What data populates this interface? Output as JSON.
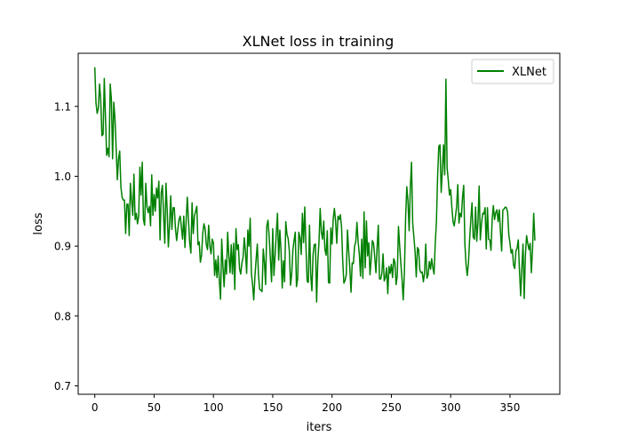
{
  "chart_data": {
    "type": "line",
    "title": "XLNet loss in training",
    "xlabel": "iters",
    "ylabel": "loss",
    "xlim": [
      -14,
      392
    ],
    "ylim": [
      0.688,
      1.176
    ],
    "xticks": [
      0,
      50,
      100,
      150,
      200,
      250,
      300,
      350
    ],
    "yticks": [
      0.7,
      0.8,
      0.9,
      1.0,
      1.1
    ],
    "ytick_labels": [
      "0.7",
      "0.8",
      "0.9",
      "1.0",
      "1.1"
    ],
    "legend": {
      "position": "top-right"
    },
    "grid": false,
    "series": [
      {
        "name": "XLNet",
        "color": "#008000",
        "x_start": 0,
        "x_step": 1,
        "values": [
          1.156,
          1.105,
          1.09,
          1.097,
          1.132,
          1.109,
          1.058,
          1.06,
          1.14,
          1.084,
          1.03,
          1.04,
          1.028,
          1.132,
          1.11,
          1.025,
          1.106,
          1.083,
          1.04,
          0.995,
          1.025,
          1.036,
          0.985,
          0.97,
          0.966,
          0.966,
          0.918,
          0.96,
          0.96,
          0.915,
          0.99,
          0.966,
          0.944,
          1.003,
          0.938,
          0.947,
          0.932,
          0.943,
          1.013,
          0.973,
          1.02,
          0.938,
          0.93,
          0.99,
          0.956,
          0.948,
          0.957,
          0.929,
          1.002,
          0.944,
          0.974,
          0.95,
          0.983,
          0.969,
          0.993,
          0.909,
          0.976,
          0.987,
          0.944,
          0.904,
          0.99,
          0.953,
          0.899,
          0.93,
          0.972,
          0.924,
          0.955,
          0.955,
          0.925,
          0.908,
          0.924,
          0.938,
          0.943,
          0.927,
          0.91,
          0.943,
          0.898,
          0.937,
          0.97,
          0.936,
          0.905,
          0.89,
          0.962,
          0.918,
          0.943,
          0.95,
          0.957,
          0.902,
          0.906,
          0.877,
          0.887,
          0.918,
          0.932,
          0.925,
          0.902,
          0.895,
          0.93,
          0.9,
          0.889,
          0.91,
          0.905,
          0.858,
          0.88,
          0.855,
          0.886,
          0.85,
          0.824,
          0.91,
          0.872,
          0.842,
          0.88,
          0.86,
          0.92,
          0.886,
          0.862,
          0.902,
          0.86,
          0.904,
          0.838,
          0.925,
          0.895,
          0.902,
          0.868,
          0.86,
          0.876,
          0.884,
          0.912,
          0.892,
          0.861,
          0.923,
          0.9,
          0.94,
          0.861,
          0.845,
          0.823,
          0.857,
          0.881,
          0.903,
          0.858,
          0.838,
          0.837,
          0.835,
          0.896,
          0.877,
          0.845,
          0.929,
          0.937,
          0.913,
          0.882,
          0.849,
          0.925,
          0.858,
          0.887,
          0.919,
          0.947,
          0.88,
          0.923,
          0.893,
          0.84,
          0.879,
          0.849,
          0.935,
          0.917,
          0.911,
          0.893,
          0.844,
          0.86,
          0.895,
          0.908,
          0.92,
          0.842,
          0.853,
          0.92,
          0.912,
          0.888,
          0.947,
          0.905,
          0.956,
          0.9,
          0.85,
          0.848,
          0.93,
          0.86,
          0.836,
          0.888,
          0.902,
          0.903,
          0.82,
          0.879,
          0.906,
          0.954,
          0.92,
          0.91,
          0.936,
          0.895,
          0.887,
          0.922,
          0.848,
          0.847,
          0.926,
          0.903,
          0.939,
          0.954,
          0.935,
          0.904,
          0.943,
          0.938,
          0.945,
          0.928,
          0.879,
          0.847,
          0.851,
          0.859,
          0.923,
          0.893,
          0.868,
          0.834,
          0.876,
          0.875,
          0.9,
          0.906,
          0.934,
          0.906,
          0.889,
          0.857,
          0.91,
          0.854,
          0.949,
          0.869,
          0.936,
          0.886,
          0.905,
          0.859,
          0.881,
          0.908,
          0.904,
          0.884,
          0.862,
          0.898,
          0.93,
          0.853,
          0.853,
          0.861,
          0.889,
          0.85,
          0.855,
          0.869,
          0.832,
          0.871,
          0.861,
          0.874,
          0.855,
          0.882,
          0.877,
          0.845,
          0.858,
          0.928,
          0.901,
          0.875,
          0.853,
          0.823,
          0.862,
          0.939,
          0.985,
          0.965,
          0.922,
          0.984,
          1.02,
          0.933,
          0.913,
          0.892,
          0.856,
          0.898,
          0.895,
          0.866,
          0.862,
          0.863,
          0.849,
          0.862,
          0.903,
          0.854,
          0.859,
          0.878,
          0.867,
          0.882,
          0.869,
          0.86,
          0.904,
          0.935,
          1.0,
          1.043,
          1.045,
          0.977,
          1.008,
          1.045,
          1.002,
          1.139,
          1.012,
          0.994,
          0.973,
          0.981,
          0.956,
          0.935,
          0.929,
          0.942,
          0.956,
          0.988,
          0.933,
          0.947,
          0.942,
          0.97,
          0.987,
          0.902,
          0.873,
          0.858,
          0.876,
          0.91,
          0.938,
          0.962,
          0.913,
          0.91,
          0.956,
          0.907,
          0.934,
          0.986,
          0.909,
          0.932,
          0.947,
          0.946,
          0.955,
          0.896,
          0.955,
          0.91,
          0.909,
          0.894,
          0.939,
          0.958,
          0.938,
          0.948,
          0.952,
          0.935,
          0.952,
          0.92,
          0.893,
          0.952,
          0.953,
          0.956,
          0.955,
          0.949,
          0.917,
          0.904,
          0.89,
          0.895,
          0.873,
          0.868,
          0.893,
          0.897,
          0.909,
          0.865,
          0.829,
          0.869,
          0.903,
          0.825,
          0.887,
          0.915,
          0.904,
          0.895,
          0.904,
          0.862,
          0.895,
          0.947,
          0.908
        ]
      }
    ]
  }
}
